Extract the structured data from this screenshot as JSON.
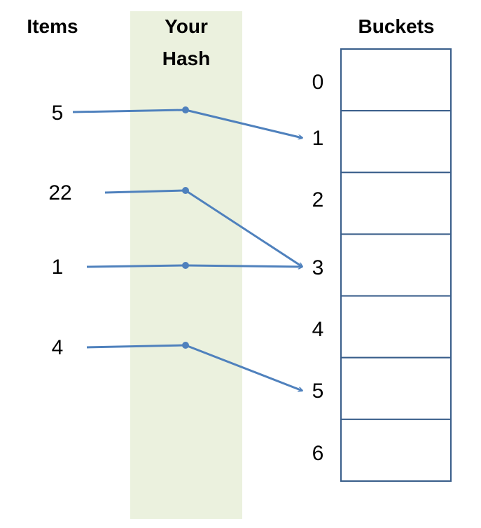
{
  "headers": {
    "items": "Items",
    "hash_line1": "Your",
    "hash_line2": "Hash",
    "buckets": "Buckets"
  },
  "colors": {
    "hash_column": "#ebf1de",
    "arrow": "#4f81bd",
    "bucket_border": "#385d8a"
  },
  "items": [
    {
      "label": "5",
      "bucket": 1
    },
    {
      "label": "22",
      "bucket": 3
    },
    {
      "label": "1",
      "bucket": 3
    },
    {
      "label": "4",
      "bucket": 5
    }
  ],
  "buckets": [
    "0",
    "1",
    "2",
    "3",
    "4",
    "5",
    "6"
  ]
}
